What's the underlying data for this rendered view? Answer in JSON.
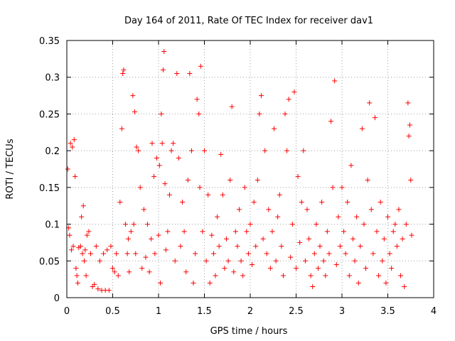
{
  "chart_data": {
    "type": "scatter",
    "title": "Day 164 of 2011, Rate Of TEC Index for receiver dav1",
    "xlabel": "GPS time / hours",
    "ylabel": "ROTI / TECUs",
    "xlim": [
      0,
      4
    ],
    "ylim": [
      0,
      0.35
    ],
    "xticks": [
      0,
      0.5,
      1,
      1.5,
      2,
      2.5,
      3,
      3.5,
      4
    ],
    "xtick_labels": [
      "0",
      "0.5",
      "1",
      "1.5",
      "2",
      "2.5",
      "3",
      "3.5",
      "4"
    ],
    "yticks": [
      0,
      0.05,
      0.1,
      0.15,
      0.2,
      0.25,
      0.3,
      0.35
    ],
    "ytick_labels": [
      "0",
      "0.05",
      "0.1",
      "0.15",
      "0.2",
      "0.25",
      "0.3",
      "0.35"
    ],
    "grid": true,
    "marker": "+",
    "color": "#ff0000",
    "series": [
      {
        "name": "ROTI",
        "points": [
          [
            0.01,
            0.175
          ],
          [
            0.02,
            0.095
          ],
          [
            0.03,
            0.085
          ],
          [
            0.04,
            0.21
          ],
          [
            0.05,
            0.065
          ],
          [
            0.06,
            0.205
          ],
          [
            0.07,
            0.07
          ],
          [
            0.08,
            0.215
          ],
          [
            0.09,
            0.165
          ],
          [
            0.1,
            0.04
          ],
          [
            0.11,
            0.03
          ],
          [
            0.12,
            0.02
          ],
          [
            0.13,
            0.068
          ],
          [
            0.15,
            0.07
          ],
          [
            0.16,
            0.11
          ],
          [
            0.17,
            0.06
          ],
          [
            0.18,
            0.125
          ],
          [
            0.19,
            0.05
          ],
          [
            0.2,
            0.065
          ],
          [
            0.21,
            0.03
          ],
          [
            0.22,
            0.085
          ],
          [
            0.24,
            0.09
          ],
          [
            0.26,
            0.06
          ],
          [
            0.28,
            0.015
          ],
          [
            0.3,
            0.018
          ],
          [
            0.32,
            0.07
          ],
          [
            0.34,
            0.012
          ],
          [
            0.36,
            0.05
          ],
          [
            0.38,
            0.01
          ],
          [
            0.4,
            0.06
          ],
          [
            0.42,
            0.01
          ],
          [
            0.44,
            0.065
          ],
          [
            0.46,
            0.01
          ],
          [
            0.48,
            0.07
          ],
          [
            0.5,
            0.04
          ],
          [
            0.52,
            0.035
          ],
          [
            0.54,
            0.06
          ],
          [
            0.56,
            0.03
          ],
          [
            0.58,
            0.13
          ],
          [
            0.6,
            0.23
          ],
          [
            0.61,
            0.305
          ],
          [
            0.62,
            0.31
          ],
          [
            0.64,
            0.1
          ],
          [
            0.66,
            0.06
          ],
          [
            0.67,
            0.08
          ],
          [
            0.68,
            0.035
          ],
          [
            0.7,
            0.09
          ],
          [
            0.72,
            0.275
          ],
          [
            0.73,
            0.1
          ],
          [
            0.74,
            0.253
          ],
          [
            0.75,
            0.06
          ],
          [
            0.76,
            0.205
          ],
          [
            0.78,
            0.2
          ],
          [
            0.8,
            0.15
          ],
          [
            0.82,
            0.04
          ],
          [
            0.84,
            0.12
          ],
          [
            0.86,
            0.055
          ],
          [
            0.88,
            0.1
          ],
          [
            0.9,
            0.035
          ],
          [
            0.92,
            0.08
          ],
          [
            0.93,
            0.21
          ],
          [
            0.95,
            0.165
          ],
          [
            0.96,
            0.06
          ],
          [
            0.98,
            0.19
          ],
          [
            1.0,
            0.085
          ],
          [
            1.01,
            0.18
          ],
          [
            1.02,
            0.02
          ],
          [
            1.03,
            0.25
          ],
          [
            1.04,
            0.21
          ],
          [
            1.05,
            0.31
          ],
          [
            1.06,
            0.335
          ],
          [
            1.07,
            0.155
          ],
          [
            1.08,
            0.065
          ],
          [
            1.1,
            0.09
          ],
          [
            1.12,
            0.14
          ],
          [
            1.14,
            0.2
          ],
          [
            1.16,
            0.21
          ],
          [
            1.18,
            0.05
          ],
          [
            1.2,
            0.305
          ],
          [
            1.22,
            0.19
          ],
          [
            1.24,
            0.07
          ],
          [
            1.26,
            0.13
          ],
          [
            1.28,
            0.09
          ],
          [
            1.3,
            0.035
          ],
          [
            1.32,
            0.16
          ],
          [
            1.34,
            0.305
          ],
          [
            1.36,
            0.2
          ],
          [
            1.38,
            0.02
          ],
          [
            1.4,
            0.06
          ],
          [
            1.42,
            0.27
          ],
          [
            1.44,
            0.25
          ],
          [
            1.45,
            0.15
          ],
          [
            1.46,
            0.315
          ],
          [
            1.48,
            0.09
          ],
          [
            1.5,
            0.2
          ],
          [
            1.52,
            0.05
          ],
          [
            1.54,
            0.14
          ],
          [
            1.56,
            0.02
          ],
          [
            1.58,
            0.085
          ],
          [
            1.6,
            0.06
          ],
          [
            1.62,
            0.03
          ],
          [
            1.64,
            0.11
          ],
          [
            1.66,
            0.07
          ],
          [
            1.68,
            0.195
          ],
          [
            1.7,
            0.14
          ],
          [
            1.72,
            0.04
          ],
          [
            1.74,
            0.08
          ],
          [
            1.76,
            0.05
          ],
          [
            1.78,
            0.16
          ],
          [
            1.8,
            0.26
          ],
          [
            1.82,
            0.035
          ],
          [
            1.84,
            0.09
          ],
          [
            1.86,
            0.07
          ],
          [
            1.88,
            0.12
          ],
          [
            1.9,
            0.05
          ],
          [
            1.92,
            0.03
          ],
          [
            1.94,
            0.15
          ],
          [
            1.96,
            0.09
          ],
          [
            1.98,
            0.06
          ],
          [
            2.0,
            0.1
          ],
          [
            2.02,
            0.045
          ],
          [
            2.04,
            0.13
          ],
          [
            2.06,
            0.07
          ],
          [
            2.08,
            0.16
          ],
          [
            2.1,
            0.25
          ],
          [
            2.12,
            0.275
          ],
          [
            2.14,
            0.08
          ],
          [
            2.16,
            0.2
          ],
          [
            2.18,
            0.06
          ],
          [
            2.2,
            0.12
          ],
          [
            2.22,
            0.04
          ],
          [
            2.24,
            0.09
          ],
          [
            2.26,
            0.23
          ],
          [
            2.28,
            0.05
          ],
          [
            2.3,
            0.11
          ],
          [
            2.32,
            0.14
          ],
          [
            2.34,
            0.07
          ],
          [
            2.36,
            0.03
          ],
          [
            2.38,
            0.25
          ],
          [
            2.4,
            0.2
          ],
          [
            2.42,
            0.27
          ],
          [
            2.44,
            0.055
          ],
          [
            2.46,
            0.1
          ],
          [
            2.48,
            0.28
          ],
          [
            2.5,
            0.04
          ],
          [
            2.52,
            0.165
          ],
          [
            2.54,
            0.075
          ],
          [
            2.56,
            0.13
          ],
          [
            2.58,
            0.2
          ],
          [
            2.6,
            0.05
          ],
          [
            2.62,
            0.12
          ],
          [
            2.64,
            0.08
          ],
          [
            2.66,
            0.03
          ],
          [
            2.68,
            0.015
          ],
          [
            2.7,
            0.06
          ],
          [
            2.72,
            0.1
          ],
          [
            2.74,
            0.04
          ],
          [
            2.76,
            0.07
          ],
          [
            2.78,
            0.13
          ],
          [
            2.8,
            0.05
          ],
          [
            2.82,
            0.03
          ],
          [
            2.84,
            0.09
          ],
          [
            2.86,
            0.06
          ],
          [
            2.88,
            0.24
          ],
          [
            2.9,
            0.15
          ],
          [
            2.92,
            0.295
          ],
          [
            2.94,
            0.045
          ],
          [
            2.96,
            0.11
          ],
          [
            2.98,
            0.07
          ],
          [
            3.0,
            0.15
          ],
          [
            3.02,
            0.09
          ],
          [
            3.04,
            0.06
          ],
          [
            3.06,
            0.13
          ],
          [
            3.08,
            0.03
          ],
          [
            3.1,
            0.18
          ],
          [
            3.12,
            0.08
          ],
          [
            3.14,
            0.05
          ],
          [
            3.16,
            0.11
          ],
          [
            3.18,
            0.02
          ],
          [
            3.2,
            0.07
          ],
          [
            3.22,
            0.23
          ],
          [
            3.24,
            0.1
          ],
          [
            3.26,
            0.04
          ],
          [
            3.28,
            0.16
          ],
          [
            3.3,
            0.265
          ],
          [
            3.32,
            0.12
          ],
          [
            3.34,
            0.06
          ],
          [
            3.36,
            0.245
          ],
          [
            3.38,
            0.09
          ],
          [
            3.4,
            0.03
          ],
          [
            3.42,
            0.13
          ],
          [
            3.44,
            0.05
          ],
          [
            3.46,
            0.08
          ],
          [
            3.48,
            0.02
          ],
          [
            3.5,
            0.11
          ],
          [
            3.52,
            0.06
          ],
          [
            3.54,
            0.04
          ],
          [
            3.56,
            0.09
          ],
          [
            3.58,
            0.1
          ],
          [
            3.6,
            0.07
          ],
          [
            3.62,
            0.12
          ],
          [
            3.64,
            0.03
          ],
          [
            3.66,
            0.08
          ],
          [
            3.68,
            0.015
          ],
          [
            3.7,
            0.1
          ],
          [
            3.72,
            0.265
          ],
          [
            3.73,
            0.22
          ],
          [
            3.74,
            0.235
          ],
          [
            3.75,
            0.16
          ],
          [
            3.76,
            0.085
          ]
        ]
      }
    ]
  }
}
